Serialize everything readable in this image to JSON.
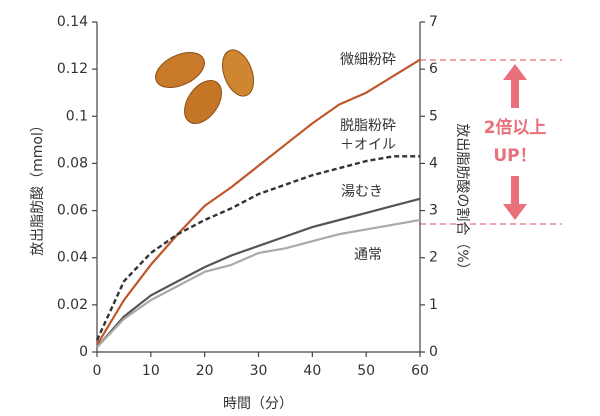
{
  "chart_data": {
    "type": "line",
    "x_label": "時間（分）",
    "y_label": "放出脂肪酸（mmol）",
    "y2_label": "放出脂肪酸の割合（%）",
    "annotation": [
      "2倍以上",
      "UP！"
    ],
    "x": [
      0,
      5,
      10,
      15,
      20,
      25,
      30,
      35,
      40,
      45,
      50,
      55,
      60
    ],
    "xlim": [
      0,
      60
    ],
    "xticks": [
      0,
      10,
      20,
      30,
      40,
      50,
      60
    ],
    "ylim": [
      0,
      0.14
    ],
    "yticks": [
      0,
      0.02,
      0.04,
      0.06,
      0.08,
      0.1,
      0.12,
      0.14
    ],
    "y2lim": [
      0,
      7
    ],
    "y2ticks": [
      0,
      1,
      2,
      3,
      4,
      5,
      6,
      7
    ],
    "series": [
      {
        "name": "微細粉砕",
        "color": "#c0562a",
        "dash": false,
        "values": [
          0.003,
          0.022,
          0.037,
          0.05,
          0.062,
          0.07,
          0.079,
          0.088,
          0.097,
          0.105,
          0.11,
          0.117,
          0.124
        ]
      },
      {
        "name": "脱脂粉砕＋オイル",
        "color": "#333333",
        "dash": true,
        "values": [
          0.005,
          0.03,
          0.042,
          0.05,
          0.056,
          0.061,
          0.067,
          0.071,
          0.075,
          0.078,
          0.081,
          0.083,
          0.083
        ]
      },
      {
        "name": "湯むき",
        "color": "#555555",
        "dash": false,
        "values": [
          0.002,
          0.015,
          0.024,
          0.03,
          0.036,
          0.041,
          0.045,
          0.049,
          0.053,
          0.056,
          0.059,
          0.062,
          0.065
        ]
      },
      {
        "name": "通常",
        "color": "#aaaaaa",
        "dash": false,
        "values": [
          0.002,
          0.014,
          0.022,
          0.028,
          0.034,
          0.037,
          0.042,
          0.044,
          0.047,
          0.05,
          0.052,
          0.054,
          0.056
        ]
      }
    ]
  }
}
